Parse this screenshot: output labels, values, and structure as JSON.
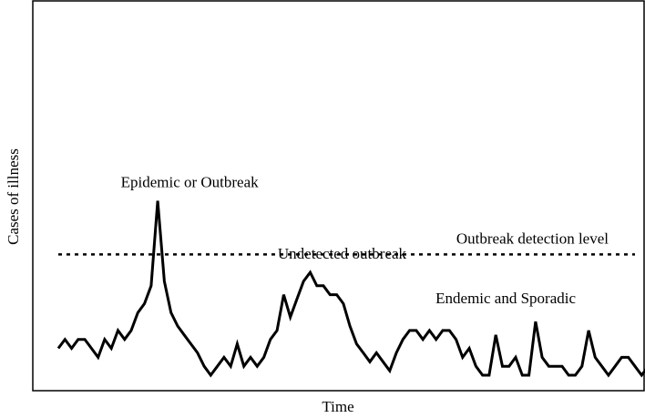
{
  "chart_data": {
    "type": "line",
    "title": "",
    "xlabel": "Time",
    "ylabel": "Cases of illness",
    "xlim": [
      0,
      87
    ],
    "ylim": [
      0,
      56
    ],
    "grid": false,
    "series": [
      {
        "values": [
          6,
          8,
          6,
          8,
          8,
          6,
          4,
          8,
          6,
          10,
          8,
          10,
          14,
          16,
          20,
          39,
          21,
          14,
          11,
          9,
          7,
          5,
          2,
          0,
          2,
          4,
          2,
          7,
          2,
          4,
          2,
          4,
          8,
          10,
          18,
          13,
          17,
          21,
          23,
          20,
          20,
          18,
          18,
          16,
          11,
          7,
          5,
          3,
          5,
          3,
          1,
          5,
          8,
          10,
          10,
          8,
          10,
          8,
          10,
          10,
          8,
          4,
          6,
          2,
          0,
          0,
          9,
          2,
          2,
          4,
          0,
          0,
          12,
          4,
          2,
          2,
          2,
          0,
          0,
          2,
          10,
          4,
          2,
          0,
          2,
          4,
          4,
          2,
          0,
          2
        ]
      }
    ],
    "reference_line": {
      "label": "Outbreak detection level",
      "value": 27,
      "style": "dotted"
    },
    "annotations": [
      {
        "label": "Epidemic or Outbreak",
        "x": 15,
        "y": 39
      },
      {
        "label": "Undetected outbreak",
        "x": 38,
        "y": 23
      },
      {
        "label": "Endemic and Sporadic",
        "x": 62,
        "y": 13
      }
    ]
  }
}
